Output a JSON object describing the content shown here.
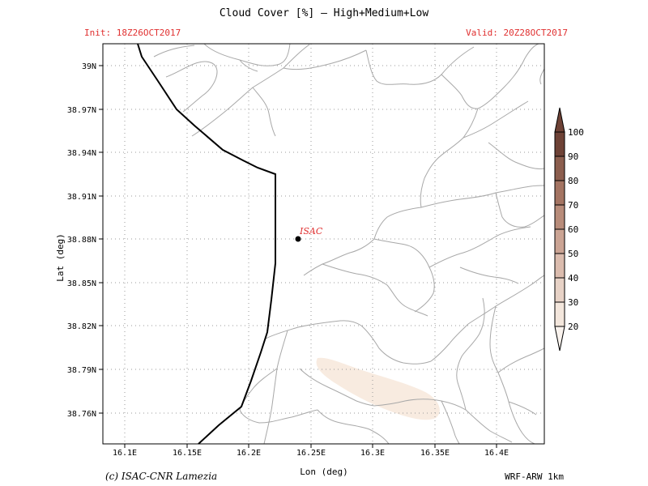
{
  "header": {
    "title": "Cloud Cover [%] — High+Medium+Low",
    "init": "Init: 18Z26OCT2017",
    "valid": "Valid: 20Z28OCT2017"
  },
  "axes": {
    "lon_label": "Lon (deg)",
    "lat_label": "Lat (deg)",
    "lon_ticks": [
      "16.1E",
      "16.15E",
      "16.2E",
      "16.25E",
      "16.3E",
      "16.35E",
      "16.4E"
    ],
    "lat_ticks": [
      "39N",
      "38.97N",
      "38.94N",
      "38.91N",
      "38.88N",
      "38.85N",
      "38.82N",
      "38.79N",
      "38.76N"
    ]
  },
  "marker": {
    "label": "ISAC"
  },
  "colorbar": {
    "labels": [
      "100",
      "90",
      "80",
      "70",
      "60",
      "50",
      "40",
      "30",
      "20"
    ],
    "colors": [
      "#6e4236",
      "#8c5e4e",
      "#a47462",
      "#b88c7a",
      "#cba494",
      "#dbbcae",
      "#e7d2c6",
      "#f3e6dc",
      "#faf3ee"
    ]
  },
  "cloud_patch_color": "#f8ebe0",
  "footer": {
    "credit": "(c) ISAC-CNR Lamezia",
    "model": "WRF-ARW 1km"
  }
}
